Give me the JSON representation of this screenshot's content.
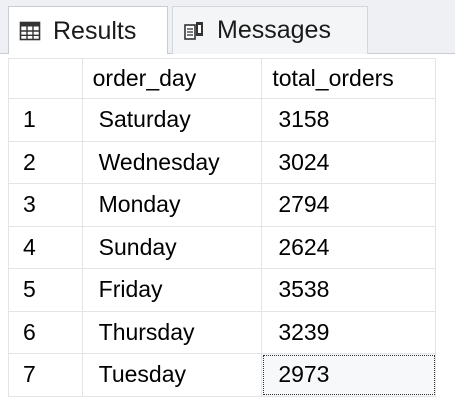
{
  "tabs": [
    {
      "label": "Results",
      "icon": "grid-icon",
      "active": true
    },
    {
      "label": "Messages",
      "icon": "messages-icon",
      "active": false
    }
  ],
  "grid": {
    "columns": [
      "order_day",
      "total_orders"
    ],
    "rows": [
      {
        "num": "1",
        "order_day": "Saturday",
        "total_orders": "3158"
      },
      {
        "num": "2",
        "order_day": "Wednesday",
        "total_orders": "3024"
      },
      {
        "num": "3",
        "order_day": "Monday",
        "total_orders": "2794"
      },
      {
        "num": "4",
        "order_day": "Sunday",
        "total_orders": "2624"
      },
      {
        "num": "5",
        "order_day": "Friday",
        "total_orders": "3538"
      },
      {
        "num": "6",
        "order_day": "Thursday",
        "total_orders": "3239"
      },
      {
        "num": "7",
        "order_day": "Tuesday",
        "total_orders": "2973"
      }
    ]
  }
}
